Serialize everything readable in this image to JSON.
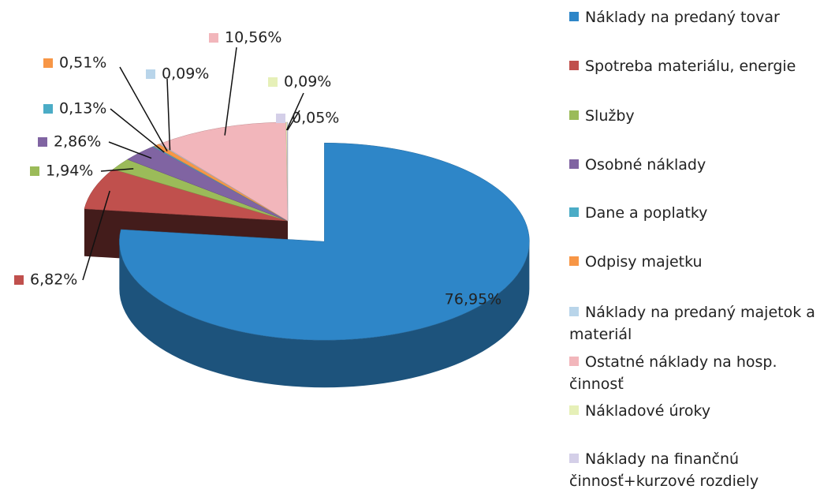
{
  "chart_data": {
    "type": "pie",
    "categories": [
      "Náklady na predaný tovar",
      "Spotreba materiálu, energie",
      "Služby",
      "Osobné náklady",
      "Dane a poplatky",
      "Odpisy majetku",
      "Náklady na predaný majetok a materiál",
      "Ostatné náklady na hosp. činnosť",
      "Nákladové úroky",
      "Náklady na finančnú činnosť+kurzové rozdiely"
    ],
    "values": [
      76.95,
      6.82,
      1.94,
      2.86,
      0.13,
      0.51,
      0.09,
      10.56,
      0.09,
      0.05
    ],
    "value_labels": [
      "76,95%",
      "6,82%",
      "1,94%",
      "2,86%",
      "0,13%",
      "0,51%",
      "0,09%",
      "10,56%",
      "0,09%",
      "0,05%"
    ],
    "colors": [
      "#2e86c8",
      "#c0504d",
      "#9bbb59",
      "#8064a2",
      "#4bacc6",
      "#f79646",
      "#b9d5ea",
      "#f2b6bb",
      "#e6f0b8",
      "#d4cfe8"
    ],
    "legend": "right"
  }
}
